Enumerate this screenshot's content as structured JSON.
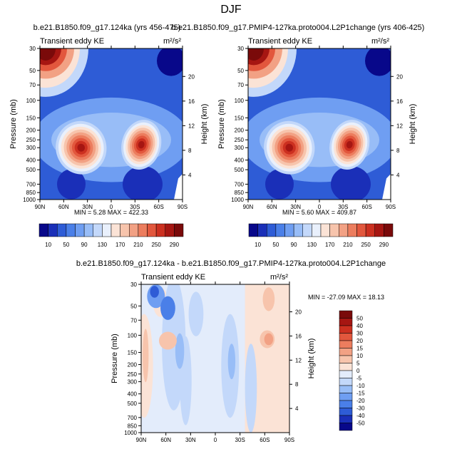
{
  "page_title": "DJF",
  "chart_data": [
    {
      "type": "heatmap",
      "title": "b.e21.B1850.f09_g17.124ka (yrs 456-475)",
      "subtitle_left": "Transient eddy KE",
      "units": "m²/s²",
      "xlabel": "",
      "ylabel": "Pressure (mb)",
      "ylabel_right": "Height (km)",
      "x_ticks": [
        "90N",
        "60N",
        "30N",
        "0",
        "30S",
        "60S",
        "90S"
      ],
      "y_ticks": [
        "30",
        "50",
        "70",
        "100",
        "150",
        "200",
        "250",
        "300",
        "400",
        "500",
        "700",
        "850",
        "1000"
      ],
      "y_ticks_right": [
        "4",
        "8",
        "12",
        "16",
        "20"
      ],
      "stats": "MIN =   5.28   MAX = 422.33",
      "colorbar_labels": [
        "10",
        "50",
        "90",
        "130",
        "170",
        "210",
        "250",
        "290"
      ],
      "features": [
        {
          "lat": 38,
          "p": 300,
          "value": 300
        },
        {
          "lat": -38,
          "p": 280,
          "value": 340
        },
        {
          "lat": 80,
          "p": 30,
          "value": 422
        }
      ]
    },
    {
      "type": "heatmap",
      "title": "b.e21.B1850.f09_g17.PMIP4-127ka.proto004.L2P1change (yrs 406-425)",
      "subtitle_left": "Transient eddy KE",
      "units": "m²/s²",
      "xlabel": "",
      "ylabel": "Pressure (mb)",
      "ylabel_right": "Height (km)",
      "x_ticks": [
        "90N",
        "60N",
        "30N",
        "0",
        "30S",
        "60S",
        "90S"
      ],
      "y_ticks": [
        "30",
        "50",
        "70",
        "100",
        "150",
        "200",
        "250",
        "300",
        "400",
        "500",
        "700",
        "850",
        "1000"
      ],
      "y_ticks_right": [
        "4",
        "8",
        "12",
        "16",
        "20"
      ],
      "stats": "MIN =   5.60   MAX = 409.87",
      "colorbar_labels": [
        "10",
        "50",
        "90",
        "130",
        "170",
        "210",
        "250",
        "290"
      ],
      "features": [
        {
          "lat": 38,
          "p": 300,
          "value": 300
        },
        {
          "lat": -38,
          "p": 280,
          "value": 330
        },
        {
          "lat": 80,
          "p": 30,
          "value": 410
        }
      ]
    },
    {
      "type": "heatmap",
      "title": "b.e21.B1850.f09_g17.124ka - b.e21.B1850.f09_g17.PMIP4-127ka.proto004.L2P1change",
      "subtitle_left": "Transient eddy KE",
      "units": "m²/s²",
      "xlabel": "",
      "ylabel": "Pressure (mb)",
      "ylabel_right": "Height (km)",
      "x_ticks": [
        "90N",
        "60N",
        "30N",
        "0",
        "30S",
        "60S",
        "90S"
      ],
      "y_ticks": [
        "30",
        "50",
        "70",
        "100",
        "150",
        "200",
        "250",
        "300",
        "400",
        "500",
        "700",
        "850",
        "1000"
      ],
      "y_ticks_right": [
        "4",
        "8",
        "12",
        "16",
        "20"
      ],
      "stats": "MIN = -27.09   MAX =  18.13",
      "colorbar_labels": [
        "50",
        "40",
        "30",
        "20",
        "15",
        "10",
        "5",
        "0",
        "-5",
        "-10",
        "-15",
        "-20",
        "-30",
        "-40",
        "-50"
      ],
      "features": [
        {
          "lat": 60,
          "p": 40,
          "value": -15
        },
        {
          "lat": -45,
          "p": 200,
          "value": 10
        },
        {
          "lat": 25,
          "p": 220,
          "value": 5
        }
      ]
    }
  ],
  "colors": {
    "abs_scale": [
      "#08088a",
      "#1a2fb8",
      "#2e5cd6",
      "#4a7fe8",
      "#6f9ef2",
      "#98bdf7",
      "#c3d8fa",
      "#e9f0fc",
      "#fbe3d6",
      "#f7c4ac",
      "#f2a184",
      "#ec7d5e",
      "#e2573d",
      "#cc3020",
      "#a61612",
      "#7a0a0a"
    ],
    "diff_scale": [
      "#7a0a0a",
      "#a61612",
      "#cc3020",
      "#e2573d",
      "#ec7d5e",
      "#f2a184",
      "#f7c4ac",
      "#fbe3d6",
      "#e3ecfb",
      "#c3d8fa",
      "#98bdf7",
      "#6f9ef2",
      "#4a7fe8",
      "#2e5cd6",
      "#1a2fb8",
      "#08088a"
    ]
  }
}
